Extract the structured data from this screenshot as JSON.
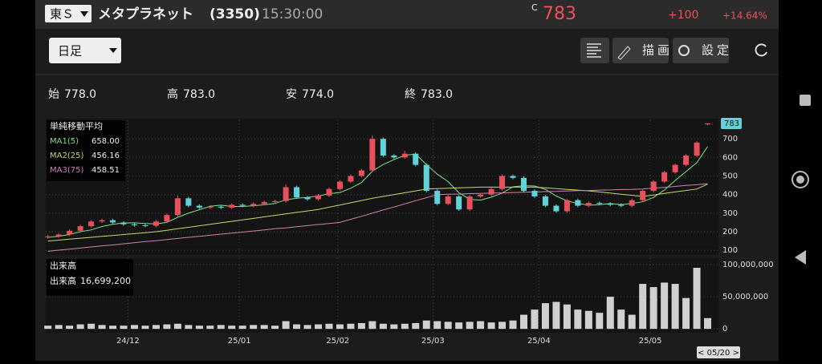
{
  "header": {
    "exchange": "東Ｓ",
    "name": "メタプラネット",
    "code": "(3350)",
    "time": "15:30:00",
    "price_prefix": "C",
    "price": "783",
    "change": "+100",
    "change_pct": "+14.64%"
  },
  "toolbar": {
    "period": "日足",
    "draw": "描画",
    "settings": "設定"
  },
  "ohlc": [
    {
      "label": "始",
      "value": "778.0"
    },
    {
      "label": "高",
      "value": "783.0"
    },
    {
      "label": "安",
      "value": "774.0"
    },
    {
      "label": "終",
      "value": "783.0"
    }
  ],
  "chart": {
    "type": "candlestick",
    "legend_title": "単純移動平均",
    "ylim": [
      75,
      800
    ],
    "yticks": [
      100,
      200,
      300,
      400,
      500,
      600,
      700
    ],
    "up_color": "#e8505b",
    "down_color": "#5fd3d8",
    "grid": true,
    "xlim": [
      -0.2,
      62
    ],
    "xticks": [
      {
        "value": 7.4,
        "label": "24/12"
      },
      {
        "value": 17.7,
        "label": "25/01"
      },
      {
        "value": 26.8,
        "label": "25/02"
      },
      {
        "value": 35.6,
        "label": "25/03"
      },
      {
        "value": 45.4,
        "label": "25/04"
      },
      {
        "value": 55.7,
        "label": "25/05"
      }
    ],
    "last_date": "< 05/20 >",
    "candles": [
      [
        170,
        183,
        162,
        175
      ],
      [
        175,
        193,
        167,
        185
      ],
      [
        185,
        213,
        177,
        205
      ],
      [
        205,
        238,
        197,
        230
      ],
      [
        230,
        263,
        222,
        255
      ],
      [
        255,
        270,
        247,
        262
      ],
      [
        262,
        270,
        242,
        250
      ],
      [
        250,
        258,
        232,
        240
      ],
      [
        240,
        248,
        227,
        235
      ],
      [
        235,
        243,
        224,
        232
      ],
      [
        232,
        263,
        224,
        255
      ],
      [
        255,
        298,
        247,
        290
      ],
      [
        290,
        395,
        282,
        380
      ],
      [
        380,
        388,
        332,
        340
      ],
      [
        340,
        348,
        322,
        330
      ],
      [
        330,
        343,
        322,
        335
      ],
      [
        335,
        343,
        322,
        330
      ],
      [
        330,
        353,
        322,
        345
      ],
      [
        345,
        353,
        332,
        340
      ],
      [
        340,
        358,
        332,
        350
      ],
      [
        350,
        368,
        342,
        360
      ],
      [
        360,
        373,
        352,
        365
      ],
      [
        365,
        455,
        357,
        440
      ],
      [
        440,
        448,
        377,
        385
      ],
      [
        385,
        393,
        367,
        375
      ],
      [
        375,
        403,
        367,
        395
      ],
      [
        395,
        438,
        387,
        430
      ],
      [
        430,
        478,
        422,
        470
      ],
      [
        470,
        508,
        462,
        500
      ],
      [
        500,
        538,
        492,
        530
      ],
      [
        530,
        720,
        522,
        700
      ],
      [
        700,
        708,
        602,
        610
      ],
      [
        610,
        618,
        592,
        600
      ],
      [
        600,
        635,
        592,
        620
      ],
      [
        620,
        628,
        552,
        560
      ],
      [
        560,
        568,
        412,
        420
      ],
      [
        420,
        428,
        342,
        350
      ],
      [
        350,
        398,
        342,
        390
      ],
      [
        390,
        398,
        312,
        320
      ],
      [
        320,
        398,
        312,
        390
      ],
      [
        390,
        408,
        382,
        400
      ],
      [
        400,
        438,
        392,
        430
      ],
      [
        430,
        508,
        422,
        500
      ],
      [
        500,
        508,
        482,
        490
      ],
      [
        490,
        498,
        412,
        420
      ],
      [
        420,
        428,
        382,
        390
      ],
      [
        390,
        398,
        332,
        340
      ],
      [
        340,
        348,
        302,
        310
      ],
      [
        310,
        378,
        302,
        370
      ],
      [
        370,
        378,
        332,
        340
      ],
      [
        340,
        363,
        332,
        355
      ],
      [
        355,
        363,
        342,
        350
      ],
      [
        350,
        358,
        337,
        345
      ],
      [
        345,
        353,
        332,
        340
      ],
      [
        340,
        378,
        332,
        370
      ],
      [
        370,
        428,
        362,
        420
      ],
      [
        420,
        478,
        412,
        470
      ],
      [
        470,
        528,
        462,
        520
      ],
      [
        520,
        568,
        512,
        560
      ],
      [
        560,
        618,
        552,
        610
      ],
      [
        610,
        688,
        602,
        680
      ],
      [
        778,
        783,
        774,
        783
      ]
    ],
    "series": [
      {
        "name": "MA1(5)",
        "value_label": "658.00",
        "color": "#7ee08a",
        "values": [
          170,
          175,
          185,
          200,
          210,
          228,
          240,
          247,
          248,
          244,
          242,
          250,
          278,
          300,
          319,
          337,
          343,
          336,
          336,
          340,
          345,
          352,
          372,
          380,
          385,
          392,
          405,
          411,
          434,
          465,
          526,
          562,
          588,
          612,
          618,
          562,
          510,
          470,
          410,
          374,
          370,
          386,
          408,
          442,
          448,
          446,
          428,
          392,
          366,
          352,
          343,
          345,
          352,
          346,
          352,
          361,
          385,
          424,
          476,
          524,
          572,
          658
        ]
      },
      {
        "name": "MA2(25)",
        "value_label": "456.16",
        "color": "#c8d86a",
        "values": [
          150,
          155,
          160,
          165,
          170,
          175,
          180,
          185,
          190,
          195,
          200,
          208,
          216,
          224,
          232,
          240,
          248,
          256,
          264,
          272,
          280,
          288,
          296,
          304,
          312,
          320,
          332,
          344,
          356,
          368,
          380,
          390,
          400,
          410,
          420,
          430,
          432,
          434,
          436,
          438,
          440,
          440,
          440,
          440,
          440,
          440,
          436,
          432,
          428,
          424,
          420,
          414,
          408,
          402,
          396,
          390,
          398,
          406,
          414,
          422,
          430,
          456.16
        ]
      },
      {
        "name": "MA3(75)",
        "value_label": "458.51",
        "color": "#d47fb4",
        "values": [
          95,
          101,
          106,
          112,
          118,
          124,
          129,
          135,
          141,
          147,
          152,
          158,
          164,
          170,
          175,
          181,
          187,
          193,
          198,
          204,
          210,
          216,
          221,
          227,
          233,
          239,
          244,
          250,
          267,
          283,
          300,
          317,
          333,
          350,
          367,
          383,
          400,
          402,
          403,
          405,
          406,
          408,
          409,
          411,
          413,
          414,
          416,
          417,
          419,
          421,
          422,
          424,
          425,
          427,
          428,
          430,
          435,
          439,
          444,
          449,
          453,
          458.51
        ]
      }
    ]
  },
  "volume": {
    "type": "bar",
    "title": "出来高",
    "legend_label": "出来高",
    "legend_value": "16,699,200",
    "color": "#d0d0d0",
    "ylim": [
      -6000000,
      110000000
    ],
    "yticks": [
      {
        "value": 100000000,
        "label": "100,000,000"
      },
      {
        "value": 50000000,
        "label": "50,000,000"
      },
      0
    ],
    "values": [
      5000000,
      6000000,
      5000000,
      7000000,
      8000000,
      6000000,
      5000000,
      5000000,
      6000000,
      5000000,
      6000000,
      7000000,
      8000000,
      6000000,
      5000000,
      5000000,
      6000000,
      5000000,
      5000000,
      6000000,
      6000000,
      5000000,
      12000000,
      7000000,
      6000000,
      7000000,
      8000000,
      7000000,
      8000000,
      9000000,
      12000000,
      8000000,
      7000000,
      8000000,
      9000000,
      13000000,
      12000000,
      11000000,
      10000000,
      11000000,
      12000000,
      10000000,
      11000000,
      13000000,
      22000000,
      30000000,
      40000000,
      42000000,
      38000000,
      30000000,
      28000000,
      25000000,
      50000000,
      30000000,
      22000000,
      70000000,
      65000000,
      72000000,
      70000000,
      48000000,
      95000000,
      16699200
    ]
  }
}
